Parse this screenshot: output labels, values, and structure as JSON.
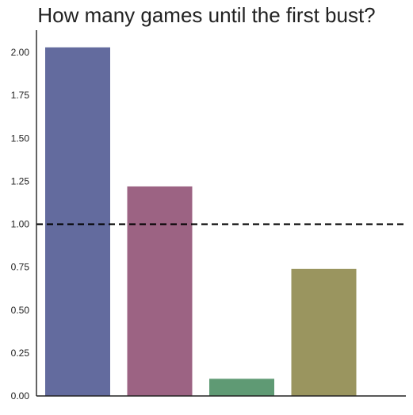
{
  "chart_data": {
    "type": "bar",
    "title": "How many games until the first bust?",
    "xlabel": "",
    "ylabel": "",
    "categories": [
      "",
      "",
      "",
      ""
    ],
    "values": [
      2.03,
      1.22,
      0.1,
      0.74
    ],
    "ylim": [
      0,
      2.13
    ],
    "yticks": [
      "0.00",
      "0.25",
      "0.50",
      "0.75",
      "1.00",
      "1.25",
      "1.50",
      "1.75",
      "2.00"
    ],
    "ytick_values": [
      0,
      0.25,
      0.5,
      0.75,
      1.0,
      1.25,
      1.5,
      1.75,
      2.0
    ],
    "reference_line": {
      "y": 1.0,
      "style": "dashed",
      "color": "#000000"
    },
    "bar_colors": [
      "#636b9e",
      "#9c6383",
      "#5f9a74",
      "#9a955f"
    ],
    "grid": false,
    "legend": "none"
  }
}
